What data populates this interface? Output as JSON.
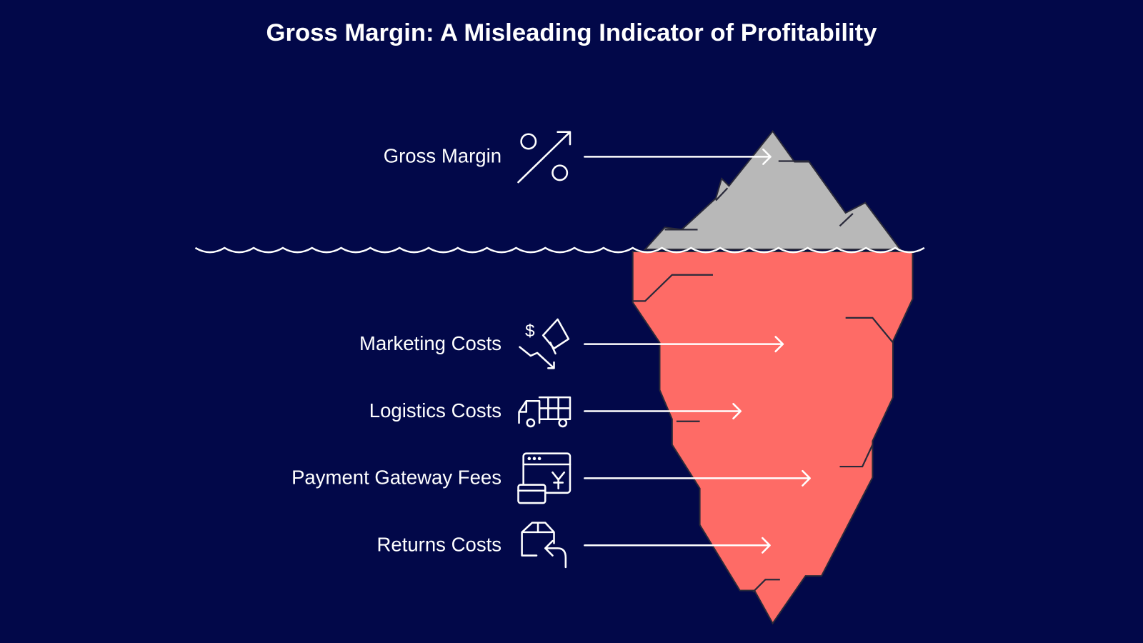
{
  "title": "Gross Margin: A Misleading Indicator of Profitability",
  "above_water": {
    "label": "Gross Margin"
  },
  "below_water": [
    {
      "label": "Marketing Costs"
    },
    {
      "label": "Logistics Costs"
    },
    {
      "label": "Payment Gateway Fees"
    },
    {
      "label": "Returns Costs"
    }
  ]
}
